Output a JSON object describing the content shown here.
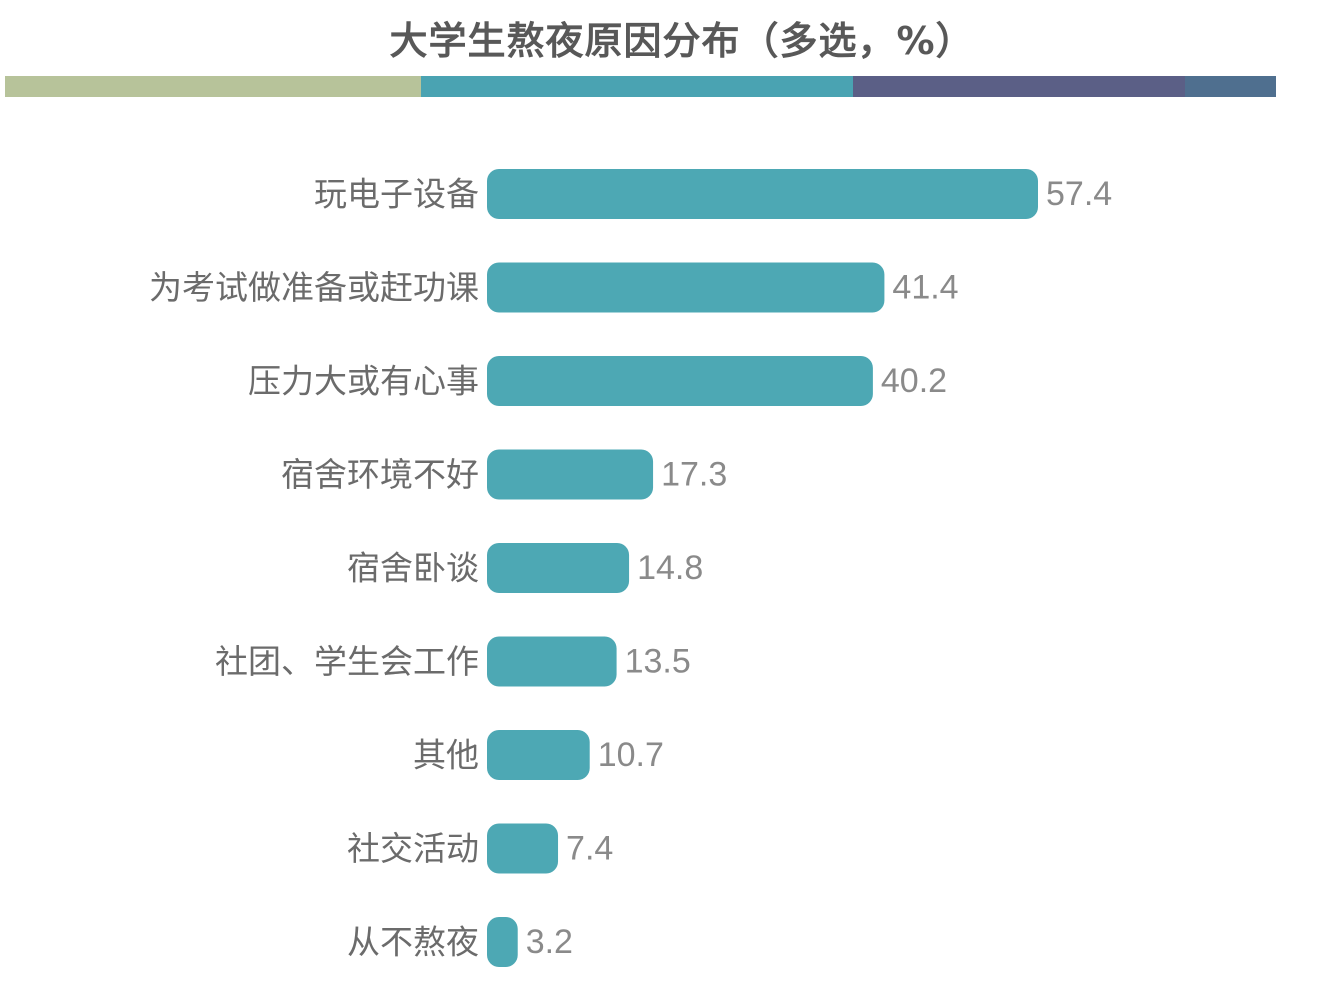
{
  "header": {
    "stripe_colors": [
      "#b7c39a",
      "#4aa3b2",
      "#5b5f86",
      "#4f6f8f"
    ]
  },
  "chart_data": {
    "type": "bar",
    "orientation": "horizontal",
    "title": "大学生熬夜原因分布（多选，%）",
    "categories": [
      "玩电子设备",
      "为考试做准备或赶功课",
      "压力大或有心事",
      "宿舍环境不好",
      "宿舍卧谈",
      "社团、学生会工作",
      "其他",
      "社交活动",
      "从不熬夜"
    ],
    "values": [
      57.4,
      41.4,
      40.2,
      17.3,
      14.8,
      13.5,
      10.7,
      7.4,
      3.2
    ],
    "value_labels": [
      "57.4",
      "41.4",
      "40.2",
      "17.3",
      "14.8",
      "13.5",
      "10.7",
      "7.4",
      "3.2"
    ],
    "xlim": [
      0,
      57.4
    ],
    "bar_color": "#4da8b4",
    "grid": false,
    "legend": "none"
  }
}
